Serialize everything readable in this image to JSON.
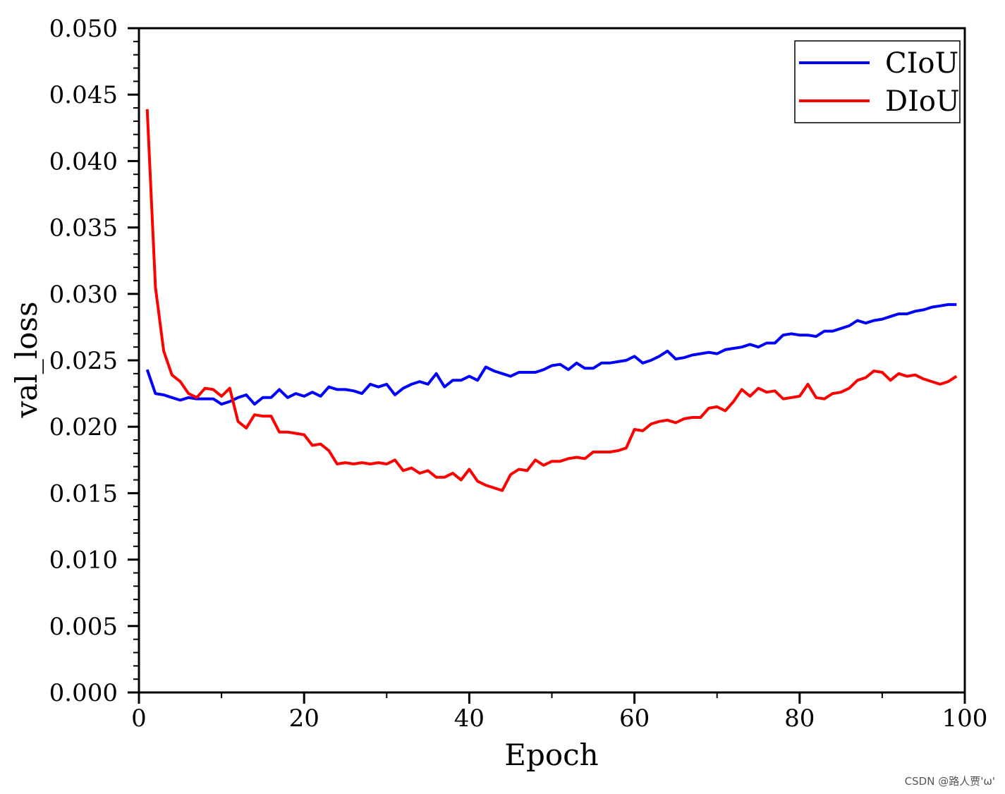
{
  "chart_data": {
    "type": "line",
    "xlabel": "Epoch",
    "ylabel": "val_loss",
    "xlim": [
      0,
      100
    ],
    "ylim": [
      0,
      0.05
    ],
    "x_ticks": [
      "0",
      "20",
      "40",
      "60",
      "80",
      "100"
    ],
    "y_ticks": [
      "0.000",
      "0.005",
      "0.010",
      "0.015",
      "0.020",
      "0.025",
      "0.030",
      "0.035",
      "0.040",
      "0.045",
      "0.050"
    ],
    "legend_position": "top-right",
    "grid": false,
    "series": [
      {
        "name": "CIoU",
        "color": "#0000ff",
        "x": [
          1,
          2,
          3,
          4,
          5,
          6,
          7,
          8,
          9,
          10,
          11,
          12,
          13,
          14,
          15,
          16,
          17,
          18,
          19,
          20,
          21,
          22,
          23,
          24,
          25,
          26,
          27,
          28,
          29,
          30,
          31,
          32,
          33,
          34,
          35,
          36,
          37,
          38,
          39,
          40,
          41,
          42,
          43,
          44,
          45,
          46,
          47,
          48,
          49,
          50,
          51,
          52,
          53,
          54,
          55,
          56,
          57,
          58,
          59,
          60,
          61,
          62,
          63,
          64,
          65,
          66,
          67,
          68,
          69,
          70,
          71,
          72,
          73,
          74,
          75,
          76,
          77,
          78,
          79,
          80,
          81,
          82,
          83,
          84,
          85,
          86,
          87,
          88,
          89,
          90,
          91,
          92,
          93,
          94,
          95,
          96,
          97,
          98,
          99
        ],
        "values": [
          0.0243,
          0.0225,
          0.0224,
          0.0222,
          0.022,
          0.0222,
          0.0221,
          0.0221,
          0.0221,
          0.0217,
          0.0219,
          0.0222,
          0.0224,
          0.0217,
          0.0222,
          0.0222,
          0.0228,
          0.0222,
          0.0225,
          0.0223,
          0.0226,
          0.0223,
          0.023,
          0.0228,
          0.0228,
          0.0227,
          0.0225,
          0.0232,
          0.023,
          0.0232,
          0.0224,
          0.0229,
          0.0232,
          0.0234,
          0.0232,
          0.024,
          0.023,
          0.0235,
          0.0235,
          0.0238,
          0.0235,
          0.0245,
          0.0242,
          0.024,
          0.0238,
          0.0241,
          0.0241,
          0.0241,
          0.0243,
          0.0246,
          0.0247,
          0.0243,
          0.0248,
          0.0244,
          0.0244,
          0.0248,
          0.0248,
          0.0249,
          0.025,
          0.0253,
          0.0248,
          0.025,
          0.0253,
          0.0257,
          0.0251,
          0.0252,
          0.0254,
          0.0255,
          0.0256,
          0.0255,
          0.0258,
          0.0259,
          0.026,
          0.0262,
          0.026,
          0.0263,
          0.0263,
          0.0269,
          0.027,
          0.0269,
          0.0269,
          0.0268,
          0.0272,
          0.0272,
          0.0274,
          0.0276,
          0.028,
          0.0278,
          0.028,
          0.0281,
          0.0283,
          0.0285,
          0.0285,
          0.0287,
          0.0288,
          0.029,
          0.0291,
          0.0292,
          0.0292
        ]
      },
      {
        "name": "DIoU",
        "color": "#ff0000",
        "x": [
          1,
          2,
          3,
          4,
          5,
          6,
          7,
          8,
          9,
          10,
          11,
          12,
          13,
          14,
          15,
          16,
          17,
          18,
          19,
          20,
          21,
          22,
          23,
          24,
          25,
          26,
          27,
          28,
          29,
          30,
          31,
          32,
          33,
          34,
          35,
          36,
          37,
          38,
          39,
          40,
          41,
          42,
          43,
          44,
          45,
          46,
          47,
          48,
          49,
          50,
          51,
          52,
          53,
          54,
          55,
          56,
          57,
          58,
          59,
          60,
          61,
          62,
          63,
          64,
          65,
          66,
          67,
          68,
          69,
          70,
          71,
          72,
          73,
          74,
          75,
          76,
          77,
          78,
          79,
          80,
          81,
          82,
          83,
          84,
          85,
          86,
          87,
          88,
          89,
          90,
          91,
          92,
          93,
          94,
          95,
          96,
          97,
          98,
          99
        ],
        "values": [
          0.0439,
          0.0305,
          0.0257,
          0.0239,
          0.0234,
          0.0225,
          0.0222,
          0.0229,
          0.0228,
          0.0223,
          0.0229,
          0.0204,
          0.0199,
          0.0209,
          0.0208,
          0.0208,
          0.0196,
          0.0196,
          0.0195,
          0.0194,
          0.0186,
          0.0187,
          0.0182,
          0.0172,
          0.0173,
          0.0172,
          0.0173,
          0.0172,
          0.0173,
          0.0172,
          0.0175,
          0.0167,
          0.0169,
          0.0165,
          0.0167,
          0.0162,
          0.0162,
          0.0165,
          0.016,
          0.0168,
          0.0159,
          0.0156,
          0.0154,
          0.0152,
          0.0164,
          0.0168,
          0.0167,
          0.0175,
          0.0171,
          0.0174,
          0.0174,
          0.0176,
          0.0177,
          0.0176,
          0.0181,
          0.0181,
          0.0181,
          0.0182,
          0.0184,
          0.0198,
          0.0197,
          0.0202,
          0.0204,
          0.0205,
          0.0203,
          0.0206,
          0.0207,
          0.0207,
          0.0214,
          0.0215,
          0.0212,
          0.0219,
          0.0228,
          0.0223,
          0.0229,
          0.0226,
          0.0227,
          0.0221,
          0.0222,
          0.0223,
          0.0232,
          0.0222,
          0.0221,
          0.0225,
          0.0226,
          0.0229,
          0.0235,
          0.0237,
          0.0242,
          0.0241,
          0.0235,
          0.024,
          0.0238,
          0.0239,
          0.0236,
          0.0234,
          0.0232,
          0.0234,
          0.0238
        ]
      }
    ]
  },
  "watermark": "CSDN @路人贾'ω'"
}
